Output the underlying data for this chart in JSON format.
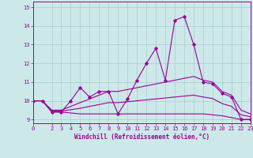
{
  "xlabel": "Windchill (Refroidissement éolien,°C)",
  "background_color": "#cde8e8",
  "grid_color": "#aacccc",
  "line_color": "#990099",
  "x_hours": [
    0,
    1,
    2,
    3,
    4,
    5,
    6,
    7,
    8,
    9,
    10,
    11,
    12,
    13,
    14,
    15,
    16,
    17,
    18,
    19,
    20,
    21,
    22,
    23
  ],
  "windchill": [
    10.0,
    10.0,
    9.4,
    9.4,
    10.0,
    10.7,
    10.2,
    10.5,
    10.5,
    9.3,
    10.1,
    11.1,
    12.0,
    12.8,
    11.1,
    14.3,
    14.5,
    13.0,
    11.0,
    10.9,
    10.4,
    10.2,
    9.0,
    9.0
  ],
  "temp_min": [
    10.0,
    10.0,
    9.4,
    9.4,
    9.35,
    9.3,
    9.3,
    9.3,
    9.3,
    9.3,
    9.3,
    9.3,
    9.3,
    9.3,
    9.3,
    9.3,
    9.3,
    9.3,
    9.3,
    9.25,
    9.2,
    9.1,
    9.0,
    9.0
  ],
  "temp_max": [
    10.0,
    10.0,
    9.5,
    9.5,
    9.7,
    9.9,
    10.1,
    10.3,
    10.5,
    10.5,
    10.6,
    10.7,
    10.8,
    10.9,
    11.0,
    11.1,
    11.2,
    11.3,
    11.1,
    11.0,
    10.5,
    10.3,
    9.5,
    9.3
  ],
  "temp_avg": [
    10.0,
    10.0,
    9.45,
    9.45,
    9.52,
    9.6,
    9.7,
    9.8,
    9.9,
    9.9,
    9.95,
    10.0,
    10.05,
    10.1,
    10.15,
    10.2,
    10.25,
    10.3,
    10.2,
    10.12,
    9.85,
    9.7,
    9.25,
    9.15
  ],
  "ylim": [
    8.8,
    15.3
  ],
  "yticks": [
    9,
    10,
    11,
    12,
    13,
    14,
    15
  ],
  "xlim": [
    0,
    23
  ],
  "xticks": [
    0,
    2,
    3,
    4,
    5,
    6,
    7,
    8,
    9,
    10,
    11,
    12,
    13,
    14,
    15,
    16,
    17,
    18,
    19,
    20,
    21,
    22,
    23
  ]
}
